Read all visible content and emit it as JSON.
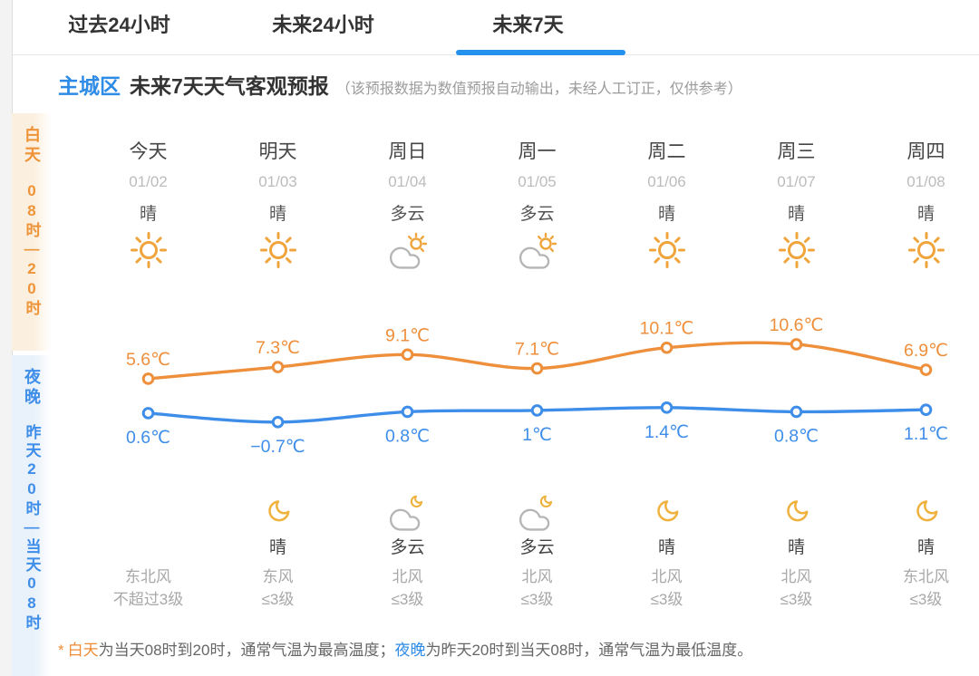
{
  "tabs": [
    {
      "label": "过去24小时",
      "active": false
    },
    {
      "label": "未来24小时",
      "active": false
    },
    {
      "label": "未来7天",
      "active": true
    }
  ],
  "header": {
    "region": "主城区",
    "title": "未来7天天气客观预报",
    "note": "（该预报数据为数值预报自动输出，未经人工订正，仅供参考）"
  },
  "sidebar": {
    "day": {
      "label": "白天",
      "time": "08时—20时",
      "color": "#ee9338"
    },
    "night": {
      "label": "夜晚",
      "time": "昨天20时—当天08时",
      "color": "#3e8ee9"
    }
  },
  "columns": [
    {
      "day": "今天",
      "date": "01/02",
      "day_weather": "晴",
      "day_icon": "sun",
      "night_icon": "none",
      "night_weather": "",
      "wind_dir": "东北风",
      "wind_level": "不超过3级"
    },
    {
      "day": "明天",
      "date": "01/03",
      "day_weather": "晴",
      "day_icon": "sun",
      "night_icon": "moon",
      "night_weather": "晴",
      "wind_dir": "东风",
      "wind_level": "≤3级"
    },
    {
      "day": "周日",
      "date": "01/04",
      "day_weather": "多云",
      "day_icon": "cloud-sun",
      "night_icon": "cloud-moon",
      "night_weather": "多云",
      "wind_dir": "北风",
      "wind_level": "≤3级"
    },
    {
      "day": "周一",
      "date": "01/05",
      "day_weather": "多云",
      "day_icon": "cloud-sun",
      "night_icon": "cloud-moon",
      "night_weather": "多云",
      "wind_dir": "北风",
      "wind_level": "≤3级"
    },
    {
      "day": "周二",
      "date": "01/06",
      "day_weather": "晴",
      "day_icon": "sun",
      "night_icon": "moon",
      "night_weather": "晴",
      "wind_dir": "北风",
      "wind_level": "≤3级"
    },
    {
      "day": "周三",
      "date": "01/07",
      "day_weather": "晴",
      "day_icon": "sun",
      "night_icon": "moon",
      "night_weather": "晴",
      "wind_dir": "北风",
      "wind_level": "≤3级"
    },
    {
      "day": "周四",
      "date": "01/08",
      "day_weather": "晴",
      "day_icon": "sun",
      "night_icon": "moon",
      "night_weather": "晴",
      "wind_dir": "东北风",
      "wind_level": "≤3级"
    }
  ],
  "chart_data": {
    "type": "line",
    "categories": [
      "今天",
      "明天",
      "周日",
      "周一",
      "周二",
      "周三",
      "周四"
    ],
    "series": [
      {
        "name": "白天最高气温",
        "color": "#ee8f3c",
        "values": [
          5.6,
          7.3,
          9.1,
          7.1,
          10.1,
          10.6,
          6.9
        ],
        "labels": [
          "5.6℃",
          "7.3℃",
          "9.1℃",
          "7.1℃",
          "10.1℃",
          "10.6℃",
          "6.9℃"
        ]
      },
      {
        "name": "夜晚最低气温",
        "color": "#3e8ee9",
        "values": [
          0.6,
          -0.7,
          0.8,
          1,
          1.4,
          0.8,
          1.1
        ],
        "labels": [
          "0.6℃",
          "−0.7℃",
          "0.8℃",
          "1℃",
          "1.4℃",
          "0.8℃",
          "1.1℃"
        ]
      }
    ],
    "unit": "℃",
    "ylim": [
      -2,
      12
    ],
    "grid": false,
    "legend": "none"
  },
  "footnote": {
    "star": "*",
    "day_term": "白天",
    "day_text": "为当天08时到20时，通常气温为最高温度；",
    "night_term": "夜晚",
    "night_text": "为昨天20时到当天08时，通常气温为最低温度。"
  }
}
